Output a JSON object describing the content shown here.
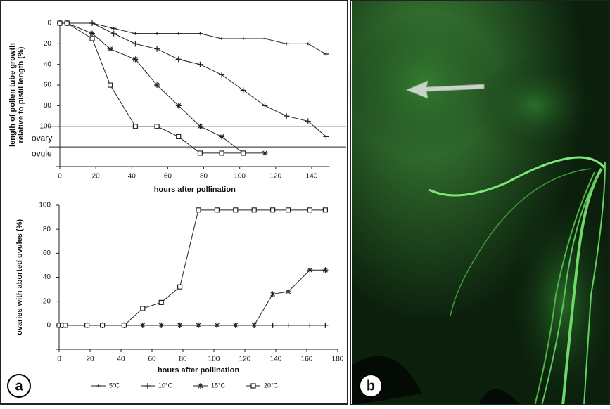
{
  "panel_labels": [
    "a",
    "b"
  ],
  "chart_data": [
    {
      "type": "line",
      "xlabel": "hours after pollination",
      "ylabel": [
        "length of pollen tube growth",
        "relative to pistil length (%)"
      ],
      "xlim": [
        0,
        150
      ],
      "xticks": [
        0,
        20,
        40,
        60,
        80,
        100,
        120,
        140
      ],
      "ylim": [
        0,
        139
      ],
      "y_inverted": true,
      "yticks": [
        0,
        20,
        40,
        60,
        80,
        100,
        {
          "value": 112,
          "label": "ovary"
        },
        {
          "value": 127,
          "label": "ovule"
        }
      ],
      "hlines": [
        100,
        120
      ],
      "series": [
        {
          "marker": "dash",
          "color": "#222",
          "x": [
            0,
            4,
            18,
            30,
            42,
            54,
            66,
            78,
            90,
            102,
            114,
            126,
            138,
            148
          ],
          "values": [
            0,
            0,
            0,
            5,
            10,
            10,
            10,
            10,
            15,
            15,
            15,
            20,
            20,
            30
          ]
        },
        {
          "marker": "plus",
          "color": "#222",
          "x": [
            0,
            4,
            18,
            30,
            42,
            54,
            66,
            78,
            90,
            102,
            114,
            126,
            138,
            148
          ],
          "values": [
            0,
            0,
            0,
            10,
            20,
            25,
            35,
            40,
            50,
            65,
            80,
            90,
            95,
            110
          ]
        },
        {
          "marker": "star",
          "color": "#222",
          "x": [
            0,
            4,
            18,
            28,
            42,
            54,
            66,
            78,
            90,
            102,
            114
          ],
          "values": [
            0,
            0,
            10,
            25,
            35,
            60,
            80,
            100,
            110,
            126,
            126
          ]
        },
        {
          "marker": "square",
          "color": "#222",
          "x": [
            0,
            4,
            18,
            28,
            42,
            54,
            66,
            78,
            90,
            102
          ],
          "values": [
            0,
            0,
            15,
            60,
            100,
            100,
            110,
            126,
            126,
            126
          ]
        }
      ]
    },
    {
      "type": "line",
      "xlabel": "hours after pollination",
      "ylabel": [
        "ovaries with aborted ovules (%)"
      ],
      "xlim": [
        0,
        180
      ],
      "xticks": [
        0,
        20,
        40,
        60,
        80,
        100,
        120,
        140,
        160,
        180
      ],
      "ylim": [
        -20,
        100
      ],
      "yticks": [
        0,
        20,
        40,
        60,
        80,
        100
      ],
      "series": [
        {
          "name": "5°C",
          "marker": "dash",
          "color": "#222",
          "x": [
            0,
            2,
            4,
            18,
            28,
            42,
            54,
            66,
            78,
            90,
            102,
            114,
            126,
            138,
            148,
            162,
            172
          ],
          "values": [
            0,
            0,
            0,
            0,
            0,
            0,
            0,
            0,
            0,
            0,
            0,
            0,
            0,
            0,
            0,
            0,
            0
          ]
        },
        {
          "name": "10°C",
          "marker": "plus",
          "color": "#222",
          "x": [
            0,
            2,
            4,
            18,
            28,
            42,
            54,
            66,
            78,
            90,
            102,
            114,
            126,
            138,
            148,
            162,
            172
          ],
          "values": [
            0,
            0,
            0,
            0,
            0,
            0,
            0,
            0,
            0,
            0,
            0,
            0,
            0,
            0,
            0,
            0,
            0
          ]
        },
        {
          "name": "15°C",
          "marker": "star",
          "color": "#222",
          "x": [
            0,
            2,
            4,
            18,
            28,
            42,
            54,
            66,
            78,
            90,
            102,
            114,
            126,
            138,
            148,
            162,
            172
          ],
          "values": [
            0,
            0,
            0,
            0,
            0,
            0,
            0,
            0,
            0,
            0,
            0,
            0,
            0,
            26,
            28,
            46,
            46
          ]
        },
        {
          "name": "20°C",
          "marker": "square",
          "color": "#222",
          "x": [
            0,
            2,
            4,
            18,
            28,
            42,
            54,
            66,
            78,
            90,
            102,
            114,
            126,
            138,
            148,
            162,
            172
          ],
          "values": [
            0,
            0,
            0,
            0,
            0,
            0,
            14,
            19,
            32,
            96,
            96,
            96,
            96,
            96,
            96,
            96,
            96
          ]
        }
      ]
    }
  ]
}
